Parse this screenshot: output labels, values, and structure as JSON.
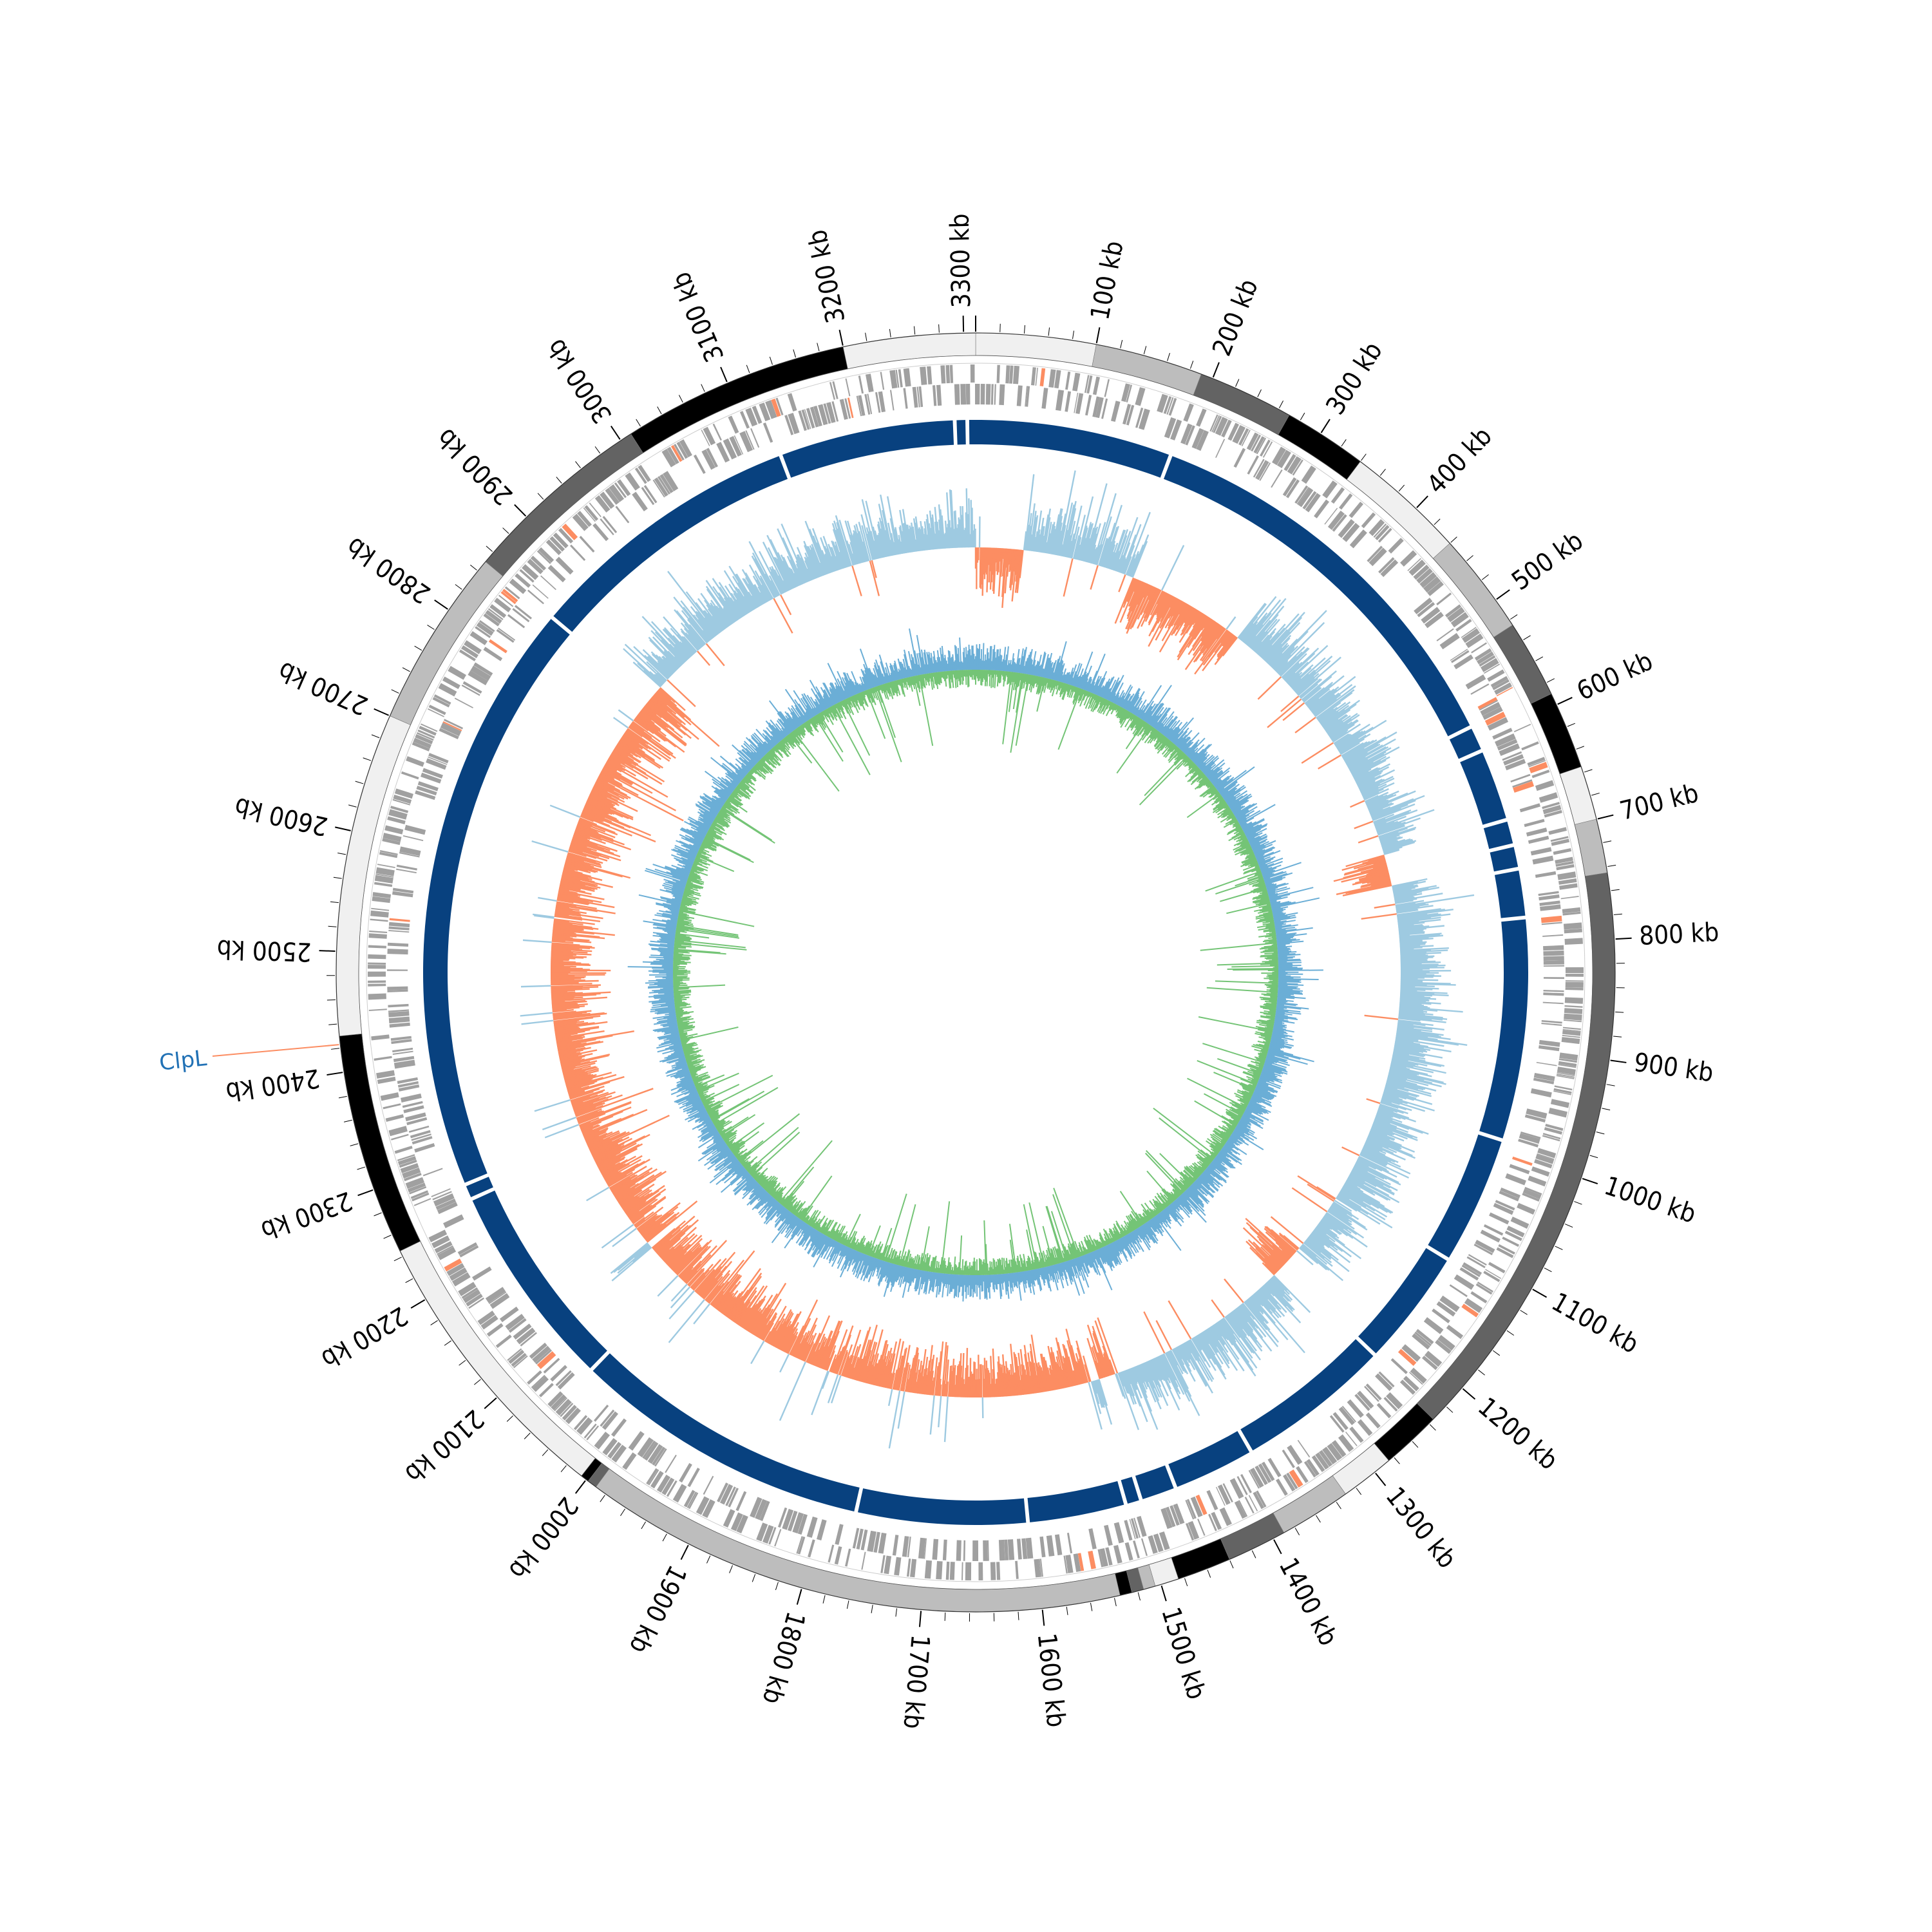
{
  "diagram": {
    "type": "circular-genome-map",
    "genome_length_kb": 3310,
    "scale": {
      "labeled_ticks_kb": [
        100,
        200,
        300,
        400,
        500,
        600,
        700,
        800,
        900,
        1000,
        1100,
        1200,
        1300,
        1400,
        1500,
        1600,
        1700,
        1800,
        1900,
        2000,
        2100,
        2200,
        2300,
        2400,
        2500,
        2600,
        2700,
        2800,
        2900,
        3000,
        3100,
        3200,
        3300
      ],
      "unit_suffix": " kb",
      "minor_tick_kb": 20
    },
    "contig_ring": {
      "segments": [
        {
          "start": 0,
          "end": 100,
          "color": "#f0f0f0"
        },
        {
          "start": 100,
          "end": 190,
          "color": "#bdbdbd"
        },
        {
          "start": 190,
          "end": 270,
          "color": "#636363"
        },
        {
          "start": 270,
          "end": 340,
          "color": "#000000"
        },
        {
          "start": 340,
          "end": 440,
          "color": "#f0f0f0"
        },
        {
          "start": 440,
          "end": 525,
          "color": "#bdbdbd"
        },
        {
          "start": 525,
          "end": 590,
          "color": "#636363"
        },
        {
          "start": 590,
          "end": 655,
          "color": "#000000"
        },
        {
          "start": 655,
          "end": 700,
          "color": "#f0f0f0"
        },
        {
          "start": 700,
          "end": 745,
          "color": "#bdbdbd"
        },
        {
          "start": 745,
          "end": 1235,
          "color": "#636363"
        },
        {
          "start": 1235,
          "end": 1285,
          "color": "#000000"
        },
        {
          "start": 1285,
          "end": 1330,
          "color": "#f0f0f0"
        },
        {
          "start": 1330,
          "end": 1390,
          "color": "#bdbdbd"
        },
        {
          "start": 1390,
          "end": 1440,
          "color": "#636363"
        },
        {
          "start": 1440,
          "end": 1485,
          "color": "#000000"
        },
        {
          "start": 1485,
          "end": 1505,
          "color": "#f0f0f0"
        },
        {
          "start": 1505,
          "end": 1515,
          "color": "#bdbdbd"
        },
        {
          "start": 1515,
          "end": 1525,
          "color": "#636363"
        },
        {
          "start": 1525,
          "end": 1535,
          "color": "#000000"
        },
        {
          "start": 1535,
          "end": 1990,
          "color": "#bdbdbd"
        },
        {
          "start": 1990,
          "end": 1998,
          "color": "#636363"
        },
        {
          "start": 1998,
          "end": 2005,
          "color": "#000000"
        },
        {
          "start": 2005,
          "end": 2245,
          "color": "#f0f0f0"
        },
        {
          "start": 2245,
          "end": 2430,
          "color": "#000000"
        },
        {
          "start": 2430,
          "end": 2700,
          "color": "#f0f0f0"
        },
        {
          "start": 2700,
          "end": 2850,
          "color": "#bdbdbd"
        },
        {
          "start": 2850,
          "end": 3010,
          "color": "#636363"
        },
        {
          "start": 3010,
          "end": 3200,
          "color": "#000000"
        },
        {
          "start": 3200,
          "end": 3310,
          "color": "#f0f0f0"
        }
      ]
    },
    "gene_ring_color": "#a0a0a0",
    "gene_accent_color": "#fc8d62",
    "blast_ring": {
      "color": "#08417f",
      "gaps_kb": [
        3302,
        3290,
        190,
        585,
        610,
        680,
        705,
        728,
        775,
        990,
        1115,
        1230,
        1380,
        1460,
        1495,
        1510,
        1605,
        1770,
        2060,
        2260,
        2275,
        2850,
        3120
      ]
    },
    "gc_skew": {
      "positive_color": "#9ecae1",
      "negative_color": "#fc8d62",
      "bands": [
        {
          "start": 0,
          "end": 60,
          "sign": -1
        },
        {
          "start": 60,
          "end": 200,
          "sign": 1
        },
        {
          "start": 200,
          "end": 350,
          "sign": -1
        },
        {
          "start": 350,
          "end": 680,
          "sign": 1
        },
        {
          "start": 680,
          "end": 720,
          "sign": -1
        },
        {
          "start": 720,
          "end": 1200,
          "sign": 1
        },
        {
          "start": 1200,
          "end": 1245,
          "sign": -1
        },
        {
          "start": 1245,
          "end": 1480,
          "sign": 1
        },
        {
          "start": 1480,
          "end": 1500,
          "sign": -1
        },
        {
          "start": 1500,
          "end": 1510,
          "sign": 1
        },
        {
          "start": 1510,
          "end": 2110,
          "sign": -1
        },
        {
          "start": 2110,
          "end": 2120,
          "sign": 1
        },
        {
          "start": 2120,
          "end": 2870,
          "sign": -1
        },
        {
          "start": 2870,
          "end": 3310,
          "sign": 1
        }
      ]
    },
    "gc_content": {
      "outer_color": "#6baed6",
      "inner_color": "#74c476"
    },
    "annotations": [
      {
        "label": "ClpL",
        "position_kb": 2423,
        "color": "#2171b5",
        "line_color": "#fc8d62"
      }
    ]
  }
}
